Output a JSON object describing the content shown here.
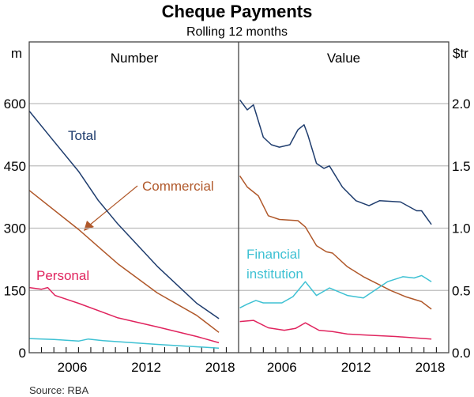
{
  "chart_data": {
    "type": "line",
    "title": "Cheque Payments",
    "subtitle": "Rolling 12 months",
    "source": "Source:   RBA",
    "x_ticks": [
      "2006",
      "2012",
      "2018"
    ],
    "xlim": [
      2003,
      2020
    ],
    "panels": [
      {
        "title": "Number",
        "unit": "m",
        "ylim": [
          0,
          600
        ],
        "y_ticks": [
          "0",
          "150",
          "300",
          "450",
          "600"
        ],
        "y_tick_values": [
          0,
          150,
          300,
          450,
          600
        ],
        "axis": "left",
        "series": [
          {
            "name": "Total",
            "label": "Total",
            "color": "#1f3d6e",
            "points": [
              [
                2003,
                582
              ],
              [
                2004.9,
                513
              ],
              [
                2007,
                437
              ],
              [
                2008.6,
                367
              ],
              [
                2010.2,
                310
              ],
              [
                2013.4,
                208
              ],
              [
                2016.6,
                119
              ],
              [
                2018.4,
                82
              ]
            ]
          },
          {
            "name": "Commercial",
            "label": "Commercial",
            "color": "#b0582a",
            "points": [
              [
                2003,
                391
              ],
              [
                2007,
                297
              ],
              [
                2010.2,
                214
              ],
              [
                2013.4,
                144
              ],
              [
                2016.6,
                90
              ],
              [
                2018.4,
                49
              ]
            ]
          },
          {
            "name": "Personal",
            "label": "Personal",
            "color": "#e0245e",
            "points": [
              [
                2003,
                157
              ],
              [
                2004,
                153
              ],
              [
                2004.5,
                157
              ],
              [
                2005.1,
                138
              ],
              [
                2007,
                119
              ],
              [
                2010.2,
                84
              ],
              [
                2013.4,
                62
              ],
              [
                2016.6,
                39
              ],
              [
                2018.4,
                24
              ]
            ]
          },
          {
            "name": "Financial institution",
            "label": "",
            "color": "#3ec1d3",
            "points": [
              [
                2003,
                34
              ],
              [
                2005,
                32
              ],
              [
                2007,
                28
              ],
              [
                2007.8,
                33
              ],
              [
                2009,
                29
              ],
              [
                2013.4,
                20
              ],
              [
                2018.4,
                11
              ]
            ]
          }
        ]
      },
      {
        "title": "Value",
        "unit": "$tr",
        "ylim": [
          0,
          2
        ],
        "y_ticks": [
          "0.0",
          "0.5",
          "1.0",
          "1.5",
          "2.0"
        ],
        "y_tick_values": [
          0,
          0.5,
          1,
          1.5,
          2
        ],
        "axis": "right",
        "series": [
          {
            "name": "Total",
            "color": "#1f3d6e",
            "points": [
              [
                2003.1,
                2.03
              ],
              [
                2003.7,
                1.95
              ],
              [
                2004.2,
                1.99
              ],
              [
                2005.0,
                1.73
              ],
              [
                2005.65,
                1.67
              ],
              [
                2006.3,
                1.65
              ],
              [
                2007.15,
                1.67
              ],
              [
                2007.8,
                1.79
              ],
              [
                2008.3,
                1.83
              ],
              [
                2008.6,
                1.75
              ],
              [
                2009.3,
                1.52
              ],
              [
                2009.9,
                1.48
              ],
              [
                2010.35,
                1.5
              ],
              [
                2011.4,
                1.33
              ],
              [
                2012.5,
                1.22
              ],
              [
                2013.55,
                1.18
              ],
              [
                2014.4,
                1.22
              ],
              [
                2016.1,
                1.21
              ],
              [
                2017.4,
                1.14
              ],
              [
                2017.8,
                1.14
              ],
              [
                2018.6,
                1.03
              ]
            ]
          },
          {
            "name": "Commercial",
            "color": "#b0582a",
            "points": [
              [
                2003.1,
                1.42
              ],
              [
                2003.7,
                1.33
              ],
              [
                2004.6,
                1.26
              ],
              [
                2005.4,
                1.1
              ],
              [
                2006.3,
                1.07
              ],
              [
                2007.8,
                1.06
              ],
              [
                2008.4,
                1.01
              ],
              [
                2009.3,
                0.86
              ],
              [
                2010.1,
                0.81
              ],
              [
                2010.6,
                0.8
              ],
              [
                2011.8,
                0.69
              ],
              [
                2013.1,
                0.61
              ],
              [
                2014.2,
                0.555
              ],
              [
                2015.3,
                0.5
              ],
              [
                2016.5,
                0.45
              ],
              [
                2017.8,
                0.41
              ],
              [
                2018.6,
                0.35
              ]
            ]
          },
          {
            "name": "Financial institution",
            "label": [
              "Financial",
              "institution"
            ],
            "color": "#3ec1d3",
            "points": [
              [
                2003.1,
                0.36
              ],
              [
                2003.7,
                0.39
              ],
              [
                2004.4,
                0.42
              ],
              [
                2005.0,
                0.4
              ],
              [
                2006.5,
                0.4
              ],
              [
                2007.4,
                0.45
              ],
              [
                2008.4,
                0.57
              ],
              [
                2009.3,
                0.46
              ],
              [
                2010.35,
                0.52
              ],
              [
                2011.8,
                0.46
              ],
              [
                2013.1,
                0.44
              ],
              [
                2014.0,
                0.5
              ],
              [
                2015.05,
                0.57
              ],
              [
                2016.3,
                0.61
              ],
              [
                2017.2,
                0.6
              ],
              [
                2017.8,
                0.62
              ],
              [
                2018.6,
                0.57
              ]
            ]
          },
          {
            "name": "Personal",
            "color": "#e0245e",
            "points": [
              [
                2003.1,
                0.25
              ],
              [
                2004.2,
                0.26
              ],
              [
                2005.4,
                0.2
              ],
              [
                2006.7,
                0.18
              ],
              [
                2007.6,
                0.195
              ],
              [
                2008.4,
                0.24
              ],
              [
                2009.5,
                0.18
              ],
              [
                2010.6,
                0.17
              ],
              [
                2011.8,
                0.15
              ],
              [
                2013.55,
                0.14
              ],
              [
                2015.7,
                0.13
              ],
              [
                2018.6,
                0.11
              ]
            ]
          }
        ]
      }
    ]
  }
}
